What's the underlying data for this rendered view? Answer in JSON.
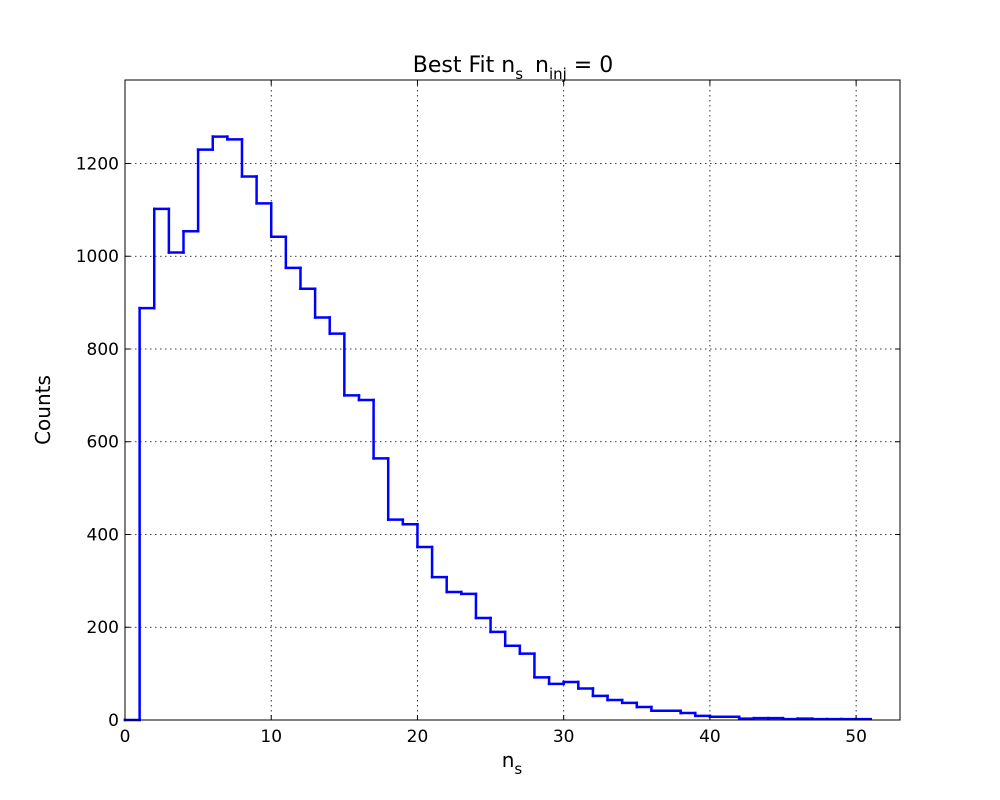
{
  "chart_data": {
    "type": "histogram-step",
    "title": {
      "main": "Best Fit n",
      "main_sub": "s",
      "tail": "n",
      "tail_sub": "inj",
      "tail_rest": " = 0"
    },
    "xlabel": {
      "main": "n",
      "sub": "s"
    },
    "ylabel": "Counts",
    "xlim": [
      0,
      53
    ],
    "ylim": [
      0,
      1380
    ],
    "xticks": [
      0,
      10,
      20,
      30,
      40,
      50
    ],
    "yticks": [
      0,
      200,
      400,
      600,
      800,
      1000,
      1200
    ],
    "xtick_labels": [
      "0",
      "10",
      "20",
      "30",
      "40",
      "50"
    ],
    "ytick_labels": [
      "0",
      "200",
      "400",
      "600",
      "800",
      "1000",
      "1200"
    ],
    "grid": true,
    "line_color": "#0000ff",
    "bin_edges": [
      0,
      1,
      2,
      3,
      4,
      5,
      6,
      7,
      8,
      9,
      10,
      11,
      12,
      13,
      14,
      15,
      16,
      17,
      18,
      19,
      20,
      21,
      22,
      23,
      24,
      25,
      26,
      27,
      28,
      29,
      30,
      31,
      32,
      33,
      34,
      35,
      36,
      37,
      38,
      39,
      40,
      41,
      42,
      43,
      44,
      45,
      46,
      47,
      48,
      49,
      50,
      51
    ],
    "counts": [
      0,
      888,
      1102,
      1008,
      1054,
      1230,
      1258,
      1252,
      1172,
      1114,
      1042,
      975,
      930,
      868,
      833,
      700,
      690,
      564,
      432,
      422,
      373,
      308,
      276,
      272,
      220,
      190,
      160,
      143,
      92,
      78,
      82,
      68,
      52,
      43,
      37,
      28,
      20,
      20,
      15,
      9,
      7,
      7,
      3,
      4,
      4,
      2,
      3,
      2,
      2,
      2,
      2
    ]
  }
}
